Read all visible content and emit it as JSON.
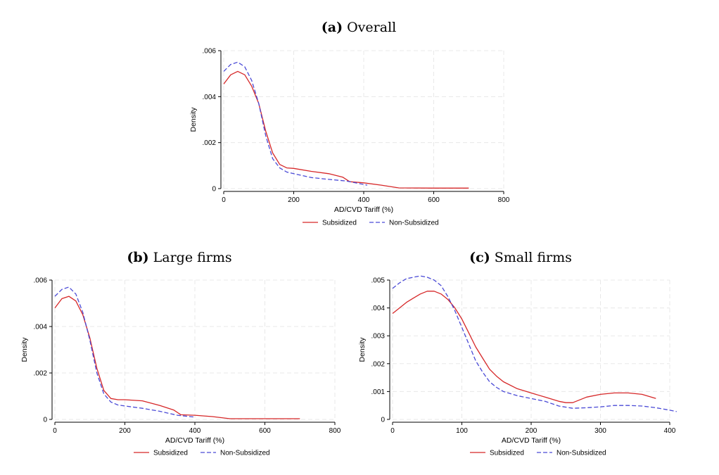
{
  "panels": [
    {
      "label": "(a)",
      "title": "Overall"
    },
    {
      "label": "(b)",
      "title": "Large firms"
    },
    {
      "label": "(c)",
      "title": "Small firms"
    }
  ],
  "colors": {
    "subsidized": "#d62728",
    "non_subsidized": "#4a4ad6",
    "grid": "#e8e8e8"
  },
  "chart_data": [
    {
      "type": "line",
      "xlabel": "AD/CVD Tariff (%)",
      "ylabel": "Density",
      "xlim": [
        0,
        800
      ],
      "ylim": [
        0,
        0.006
      ],
      "xticks": [
        0,
        200,
        400,
        600,
        800
      ],
      "xtick_labels": [
        "0",
        "200",
        "400",
        "600",
        "800"
      ],
      "yticks": [
        0,
        0.002,
        0.004,
        0.006
      ],
      "ytick_labels": [
        "0",
        ".002",
        ".004",
        ".006"
      ],
      "grid": true,
      "legend": "bottom",
      "series": [
        {
          "name": "Subsidized",
          "style": "solid",
          "x": [
            0,
            20,
            40,
            60,
            80,
            100,
            120,
            140,
            160,
            180,
            200,
            250,
            300,
            340,
            360,
            400,
            450,
            500,
            600,
            700
          ],
          "y": [
            0.00455,
            0.00495,
            0.0051,
            0.00495,
            0.00445,
            0.0037,
            0.0025,
            0.00155,
            0.00105,
            0.0009,
            0.00088,
            0.00075,
            0.00065,
            0.0005,
            0.0003,
            0.00025,
            0.00015,
            3e-05,
            2e-05,
            2e-05
          ]
        },
        {
          "name": "Non-Subsidized",
          "style": "dashed",
          "x": [
            0,
            20,
            40,
            60,
            80,
            100,
            120,
            140,
            160,
            180,
            200,
            250,
            300,
            350,
            400,
            410
          ],
          "y": [
            0.0051,
            0.0054,
            0.0055,
            0.0053,
            0.0047,
            0.0037,
            0.0023,
            0.0013,
            0.0009,
            0.00072,
            0.00065,
            0.00048,
            0.0004,
            0.00033,
            0.00018,
            0.00015
          ]
        }
      ]
    },
    {
      "type": "line",
      "xlabel": "AD/CVD Tariff (%)",
      "ylabel": "Density",
      "xlim": [
        0,
        800
      ],
      "ylim": [
        0,
        0.006
      ],
      "xticks": [
        0,
        200,
        400,
        600,
        800
      ],
      "xtick_labels": [
        "0",
        "200",
        "400",
        "600",
        "800"
      ],
      "yticks": [
        0,
        0.002,
        0.004,
        0.006
      ],
      "ytick_labels": [
        "0",
        ".002",
        ".004",
        ".006"
      ],
      "grid": true,
      "legend": "bottom",
      "series": [
        {
          "name": "Subsidized",
          "style": "solid",
          "x": [
            0,
            20,
            40,
            60,
            80,
            100,
            120,
            140,
            160,
            180,
            200,
            250,
            300,
            340,
            360,
            400,
            450,
            500,
            600,
            700
          ],
          "y": [
            0.0048,
            0.0052,
            0.0053,
            0.0051,
            0.0045,
            0.0035,
            0.0022,
            0.00125,
            0.0009,
            0.00085,
            0.00085,
            0.0008,
            0.0006,
            0.0004,
            0.0002,
            0.00018,
            0.00012,
            3e-05,
            3e-05,
            3e-05
          ]
        },
        {
          "name": "Non-Subsidized",
          "style": "dashed",
          "x": [
            0,
            20,
            40,
            60,
            80,
            100,
            120,
            140,
            160,
            180,
            200,
            250,
            300,
            350,
            400
          ],
          "y": [
            0.0053,
            0.0056,
            0.0057,
            0.0054,
            0.0046,
            0.0034,
            0.002,
            0.0011,
            0.00075,
            0.00062,
            0.00058,
            0.00048,
            0.00035,
            0.00018,
            0.0001
          ]
        }
      ]
    },
    {
      "type": "line",
      "xlabel": "AD/CVD Tariff (%)",
      "ylabel": "Density",
      "xlim": [
        0,
        400
      ],
      "ylim": [
        0,
        0.005
      ],
      "xticks": [
        0,
        100,
        200,
        300,
        400
      ],
      "xtick_labels": [
        "0",
        "100",
        "200",
        "300",
        "400"
      ],
      "yticks": [
        0,
        0.001,
        0.002,
        0.003,
        0.004,
        0.005
      ],
      "ytick_labels": [
        "0",
        ".001",
        ".002",
        ".003",
        ".004",
        ".005"
      ],
      "grid": true,
      "legend": "bottom",
      "series": [
        {
          "name": "Subsidized",
          "style": "solid",
          "x": [
            0,
            10,
            20,
            30,
            40,
            50,
            60,
            70,
            80,
            90,
            100,
            110,
            120,
            130,
            140,
            150,
            160,
            180,
            200,
            220,
            240,
            250,
            260,
            280,
            300,
            320,
            340,
            360,
            380
          ],
          "y": [
            0.0038,
            0.004,
            0.0042,
            0.00435,
            0.0045,
            0.0046,
            0.0046,
            0.0045,
            0.0043,
            0.004,
            0.0036,
            0.0031,
            0.0026,
            0.0022,
            0.0018,
            0.00155,
            0.00135,
            0.0011,
            0.00095,
            0.0008,
            0.00065,
            0.0006,
            0.0006,
            0.0008,
            0.0009,
            0.00095,
            0.00095,
            0.0009,
            0.00075
          ]
        },
        {
          "name": "Non-Subsidized",
          "style": "dashed",
          "x": [
            0,
            10,
            20,
            30,
            40,
            50,
            60,
            70,
            80,
            90,
            100,
            110,
            120,
            130,
            140,
            150,
            160,
            180,
            200,
            220,
            240,
            260,
            280,
            300,
            320,
            340,
            360,
            380,
            400,
            410
          ],
          "y": [
            0.0047,
            0.0049,
            0.00505,
            0.0051,
            0.00515,
            0.0051,
            0.005,
            0.0048,
            0.0044,
            0.0039,
            0.0033,
            0.0027,
            0.0021,
            0.0017,
            0.00135,
            0.00115,
            0.001,
            0.00085,
            0.00075,
            0.00065,
            0.00048,
            0.0004,
            0.00042,
            0.00045,
            0.0005,
            0.0005,
            0.00048,
            0.00042,
            0.00033,
            0.00028
          ]
        }
      ]
    }
  ]
}
